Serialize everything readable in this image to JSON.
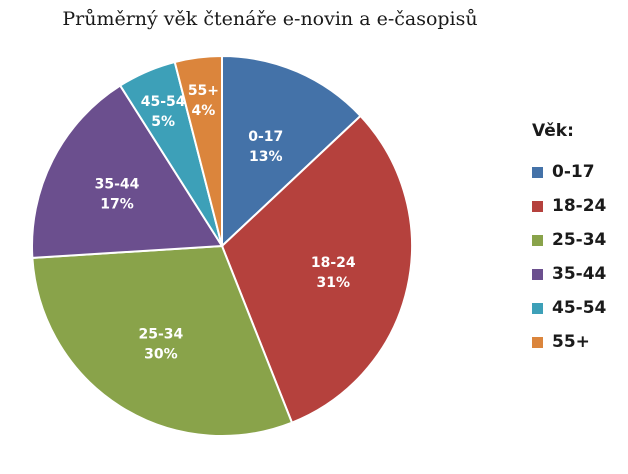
{
  "chart_data": {
    "type": "pie",
    "title": "Průměrný věk čtenáře e-novin a e-časopisů",
    "legend_title": "Věk:",
    "legend_position": "right",
    "categories": [
      "0-17",
      "18-24",
      "25-34",
      "35-44",
      "45-54",
      "55+"
    ],
    "values": [
      13,
      31,
      30,
      17,
      5,
      4
    ],
    "value_labels": [
      "13%",
      "31%",
      "30%",
      "17%",
      "5%",
      "4%"
    ],
    "colors": [
      "#4472a8",
      "#b5413d",
      "#89a34a",
      "#6b4f8e",
      "#3da0b8",
      "#db853c"
    ]
  }
}
